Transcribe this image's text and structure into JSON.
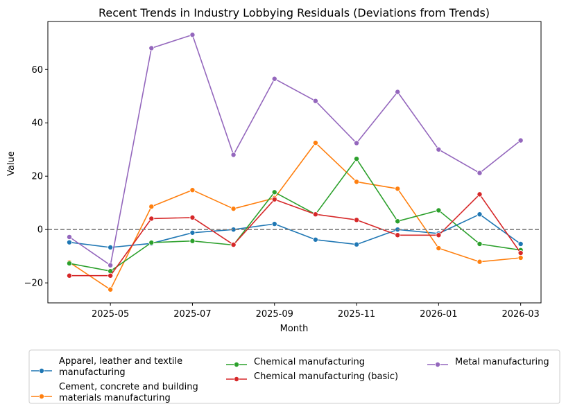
{
  "chart_data": {
    "type": "line",
    "title": "Recent Trends in Industry Lobbying Residuals (Deviations from Trends)",
    "xlabel": "Month",
    "ylabel": "Value",
    "x": [
      "2025-04",
      "2025-05",
      "2025-06",
      "2025-07",
      "2025-08",
      "2025-09",
      "2025-10",
      "2025-11",
      "2025-12",
      "2026-01",
      "2026-02",
      "2026-03"
    ],
    "x_tick_labels": [
      "2025-05",
      "2025-07",
      "2025-09",
      "2025-11",
      "2026-01",
      "2026-03"
    ],
    "y_ticks": [
      -20,
      0,
      20,
      40,
      60
    ],
    "y_tick_labels": [
      "−20",
      "0",
      "20",
      "40",
      "60"
    ],
    "ylim": [
      -27.5,
      78
    ],
    "reference_line": {
      "y": 0,
      "style": "dashed",
      "color": "#808080"
    },
    "grid": false,
    "legend_position": "bottom",
    "series": [
      {
        "name": "Apparel, leather and textile manufacturing",
        "label_lines": [
          "Apparel, leather and textile",
          "manufacturing"
        ],
        "color": "#1f77b4",
        "values": [
          -4.8,
          -6.7,
          -5.2,
          -1.2,
          0.0,
          2.1,
          -3.8,
          -5.6,
          0.0,
          -1.5,
          5.7,
          -5.4
        ]
      },
      {
        "name": "Cement, concrete and building materials manufacturing",
        "label_lines": [
          "Cement, concrete and building",
          "materials manufacturing"
        ],
        "color": "#ff7f0e",
        "values": [
          -12.3,
          -22.5,
          8.6,
          14.8,
          7.8,
          11.8,
          32.5,
          17.9,
          15.3,
          -7.0,
          -12.1,
          -10.6
        ]
      },
      {
        "name": "Chemical manufacturing",
        "label_lines": [
          "Chemical manufacturing"
        ],
        "color": "#2ca02c",
        "values": [
          -12.7,
          -15.6,
          -4.9,
          -4.3,
          -5.8,
          14.0,
          5.7,
          26.5,
          3.1,
          7.2,
          -5.4,
          -7.7
        ]
      },
      {
        "name": "Chemical manufacturing (basic)",
        "label_lines": [
          "Chemical manufacturing (basic)"
        ],
        "color": "#d62728",
        "values": [
          -17.3,
          -17.3,
          4.1,
          4.5,
          -5.7,
          11.3,
          5.7,
          3.6,
          -2.1,
          -2.1,
          13.2,
          -8.8
        ]
      },
      {
        "name": "Metal manufacturing",
        "label_lines": [
          "Metal manufacturing"
        ],
        "color": "#9467bd",
        "values": [
          -2.8,
          -13.4,
          68.0,
          73.0,
          28.0,
          56.5,
          48.2,
          32.4,
          51.6,
          30.0,
          21.2,
          33.4
        ]
      }
    ]
  }
}
